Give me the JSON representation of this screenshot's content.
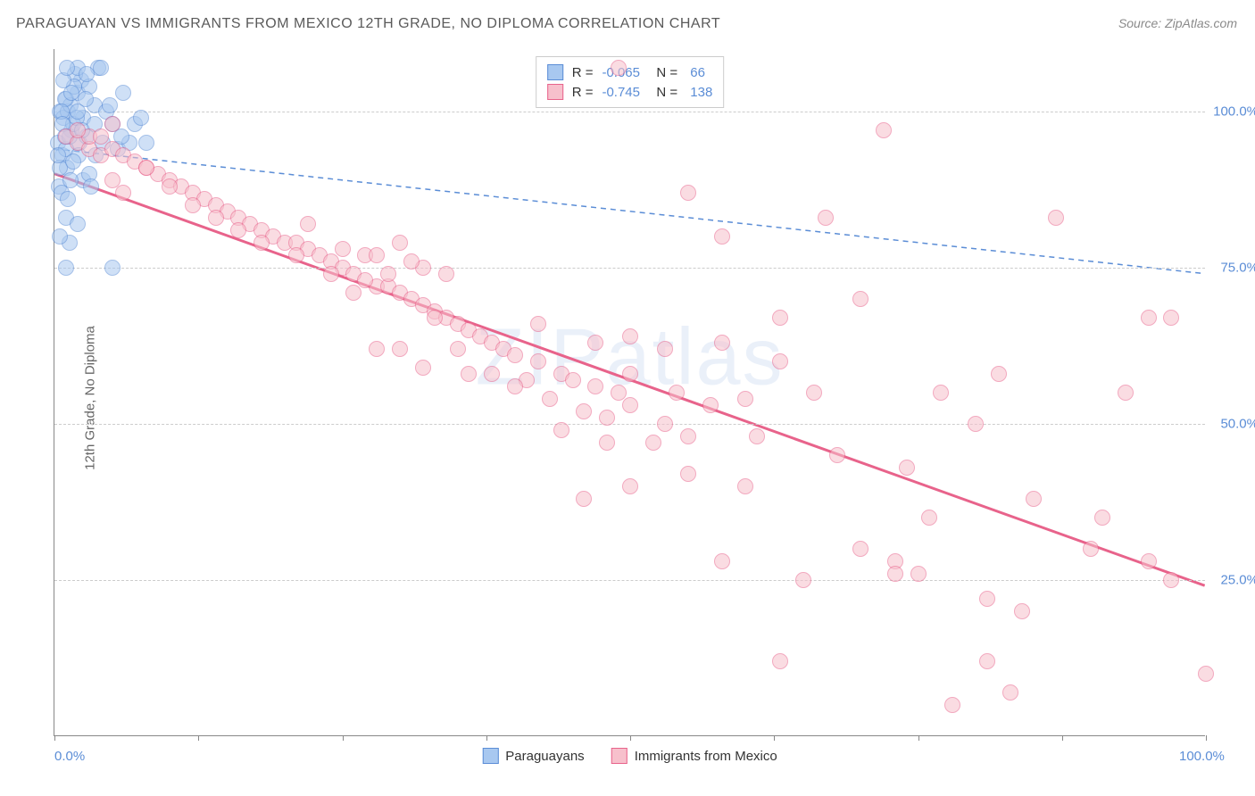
{
  "title": "PARAGUAYAN VS IMMIGRANTS FROM MEXICO 12TH GRADE, NO DIPLOMA CORRELATION CHART",
  "source": "Source: ZipAtlas.com",
  "y_axis_label": "12th Grade, No Diploma",
  "watermark": "ZIPatlas",
  "chart": {
    "type": "scatter",
    "xlim": [
      0,
      100
    ],
    "ylim": [
      0,
      110
    ],
    "x_ticks": [
      0,
      12.5,
      25,
      37.5,
      50,
      62.5,
      75,
      87.5,
      100
    ],
    "x_tick_labels": {
      "0": "0.0%",
      "100": "100.0%"
    },
    "y_ticks": [
      25,
      50,
      75,
      100
    ],
    "y_tick_labels": {
      "25": "25.0%",
      "50": "50.0%",
      "75": "75.0%",
      "100": "100.0%"
    },
    "background_color": "#ffffff",
    "grid_color": "#cccccc",
    "point_radius": 9,
    "series": [
      {
        "name": "Paraguayans",
        "color_fill": "#a8c8f0",
        "color_stroke": "#5b8dd6",
        "fill_opacity": 0.55,
        "R": "-0.065",
        "N": "66",
        "trend": {
          "x1": 0,
          "y1": 94,
          "x2": 100,
          "y2": 74,
          "dash": "6,5",
          "width": 1.5,
          "color": "#5b8dd6"
        },
        "points": [
          [
            0.5,
            100
          ],
          [
            0.8,
            99
          ],
          [
            1.0,
            102
          ],
          [
            1.2,
            100
          ],
          [
            1.5,
            97
          ],
          [
            0.3,
            95
          ],
          [
            2.0,
            103
          ],
          [
            2.3,
            105
          ],
          [
            1.8,
            106
          ],
          [
            2.5,
            99
          ],
          [
            0.7,
            93
          ],
          [
            1.1,
            91
          ],
          [
            1.0,
            94
          ],
          [
            3.0,
            104
          ],
          [
            2.0,
            107
          ],
          [
            3.5,
            101
          ],
          [
            3.8,
            107
          ],
          [
            4.0,
            107
          ],
          [
            2.2,
            95
          ],
          [
            0.4,
            88
          ],
          [
            1.3,
            96
          ],
          [
            0.6,
            87
          ],
          [
            1.6,
            98
          ],
          [
            2.8,
            96
          ],
          [
            4.5,
            100
          ],
          [
            5.0,
            98
          ],
          [
            6.0,
            103
          ],
          [
            1.0,
            83
          ],
          [
            2.0,
            82
          ],
          [
            2.5,
            89
          ],
          [
            3.0,
            90
          ],
          [
            1.4,
            101
          ],
          [
            0.9,
            102
          ],
          [
            1.7,
            104
          ],
          [
            5.5,
            94
          ],
          [
            7.0,
            98
          ],
          [
            3.2,
            88
          ],
          [
            0.5,
            91
          ],
          [
            1.2,
            86
          ],
          [
            2.1,
            93
          ],
          [
            0.8,
            105
          ],
          [
            1.5,
            103
          ],
          [
            4.2,
            95
          ],
          [
            2.7,
            102
          ],
          [
            1.9,
            99
          ],
          [
            0.6,
            100
          ],
          [
            2.4,
            97
          ],
          [
            3.6,
            93
          ],
          [
            1.1,
            107
          ],
          [
            0.7,
            98
          ],
          [
            6.5,
            95
          ],
          [
            8.0,
            95
          ],
          [
            5.0,
            75
          ],
          [
            1.0,
            75
          ],
          [
            1.3,
            79
          ],
          [
            0.5,
            80
          ],
          [
            2.0,
            100
          ],
          [
            2.8,
            106
          ],
          [
            1.6,
            92
          ],
          [
            0.9,
            96
          ],
          [
            3.5,
            98
          ],
          [
            4.8,
            101
          ],
          [
            1.4,
            89
          ],
          [
            0.3,
            93
          ],
          [
            7.5,
            99
          ],
          [
            5.8,
            96
          ]
        ]
      },
      {
        "name": "Immigrants from Mexico",
        "color_fill": "#f7c0cc",
        "color_stroke": "#e8638b",
        "fill_opacity": 0.55,
        "R": "-0.745",
        "N": "138",
        "trend": {
          "x1": 0,
          "y1": 90,
          "x2": 100,
          "y2": 24,
          "dash": "none",
          "width": 3,
          "color": "#e8638b"
        },
        "points": [
          [
            1,
            96
          ],
          [
            2,
            95
          ],
          [
            3,
            94
          ],
          [
            4,
            93
          ],
          [
            5,
            94
          ],
          [
            3,
            96
          ],
          [
            6,
            93
          ],
          [
            7,
            92
          ],
          [
            8,
            91
          ],
          [
            5,
            89
          ],
          [
            9,
            90
          ],
          [
            10,
            89
          ],
          [
            6,
            87
          ],
          [
            11,
            88
          ],
          [
            12,
            87
          ],
          [
            8,
            91
          ],
          [
            13,
            86
          ],
          [
            14,
            85
          ],
          [
            10,
            88
          ],
          [
            15,
            84
          ],
          [
            16,
            83
          ],
          [
            12,
            85
          ],
          [
            17,
            82
          ],
          [
            18,
            81
          ],
          [
            14,
            83
          ],
          [
            19,
            80
          ],
          [
            20,
            79
          ],
          [
            16,
            81
          ],
          [
            21,
            79
          ],
          [
            22,
            78
          ],
          [
            18,
            79
          ],
          [
            23,
            77
          ],
          [
            24,
            76
          ],
          [
            25,
            75
          ],
          [
            21,
            77
          ],
          [
            26,
            74
          ],
          [
            27,
            77
          ],
          [
            28,
            72
          ],
          [
            24,
            74
          ],
          [
            29,
            72
          ],
          [
            30,
            71
          ],
          [
            27,
            73
          ],
          [
            31,
            70
          ],
          [
            32,
            69
          ],
          [
            33,
            68
          ],
          [
            30,
            62
          ],
          [
            34,
            67
          ],
          [
            35,
            66
          ],
          [
            36,
            65
          ],
          [
            33,
            67
          ],
          [
            37,
            64
          ],
          [
            38,
            63
          ],
          [
            39,
            62
          ],
          [
            49,
            107
          ],
          [
            40,
            61
          ],
          [
            41,
            57
          ],
          [
            42,
            60
          ],
          [
            50,
            40
          ],
          [
            43,
            54
          ],
          [
            44,
            58
          ],
          [
            45,
            57
          ],
          [
            46,
            52
          ],
          [
            47,
            56
          ],
          [
            48,
            51
          ],
          [
            49,
            55
          ],
          [
            32,
            75
          ],
          [
            50,
            53
          ],
          [
            30,
            79
          ],
          [
            34,
            74
          ],
          [
            28,
            77
          ],
          [
            32,
            59
          ],
          [
            36,
            58
          ],
          [
            50,
            64
          ],
          [
            47,
            63
          ],
          [
            55,
            87
          ],
          [
            50,
            58
          ],
          [
            52,
            47
          ],
          [
            53,
            50
          ],
          [
            54,
            55
          ],
          [
            55,
            42
          ],
          [
            57,
            53
          ],
          [
            58,
            80
          ],
          [
            58,
            63
          ],
          [
            60,
            40
          ],
          [
            61,
            48
          ],
          [
            63,
            67
          ],
          [
            63,
            60
          ],
          [
            65,
            25
          ],
          [
            66,
            55
          ],
          [
            67,
            83
          ],
          [
            70,
            70
          ],
          [
            70,
            30
          ],
          [
            72,
            97
          ],
          [
            73,
            28
          ],
          [
            74,
            43
          ],
          [
            75,
            26
          ],
          [
            73,
            26
          ],
          [
            76,
            35
          ],
          [
            77,
            55
          ],
          [
            63,
            12
          ],
          [
            80,
            50
          ],
          [
            81,
            22
          ],
          [
            82,
            58
          ],
          [
            84,
            20
          ],
          [
            83,
            7
          ],
          [
            85,
            38
          ],
          [
            81,
            12
          ],
          [
            87,
            83
          ],
          [
            90,
            30
          ],
          [
            91,
            35
          ],
          [
            93,
            55
          ],
          [
            95,
            67
          ],
          [
            97,
            67
          ],
          [
            95,
            28
          ],
          [
            97,
            25
          ],
          [
            78,
            5
          ],
          [
            100,
            10
          ],
          [
            28,
            62
          ],
          [
            25,
            78
          ],
          [
            22,
            82
          ],
          [
            31,
            76
          ],
          [
            29,
            74
          ],
          [
            26,
            71
          ],
          [
            40,
            56
          ],
          [
            38,
            58
          ],
          [
            35,
            62
          ],
          [
            44,
            49
          ],
          [
            48,
            47
          ],
          [
            46,
            38
          ],
          [
            42,
            66
          ],
          [
            55,
            48
          ],
          [
            58,
            28
          ],
          [
            53,
            62
          ],
          [
            60,
            54
          ],
          [
            68,
            45
          ],
          [
            5,
            98
          ],
          [
            4,
            96
          ],
          [
            2,
            97
          ]
        ]
      }
    ]
  },
  "legend_bottom": [
    {
      "label": "Paraguayans",
      "fill": "#a8c8f0",
      "stroke": "#5b8dd6"
    },
    {
      "label": "Immigrants from Mexico",
      "fill": "#f7c0cc",
      "stroke": "#e8638b"
    }
  ]
}
